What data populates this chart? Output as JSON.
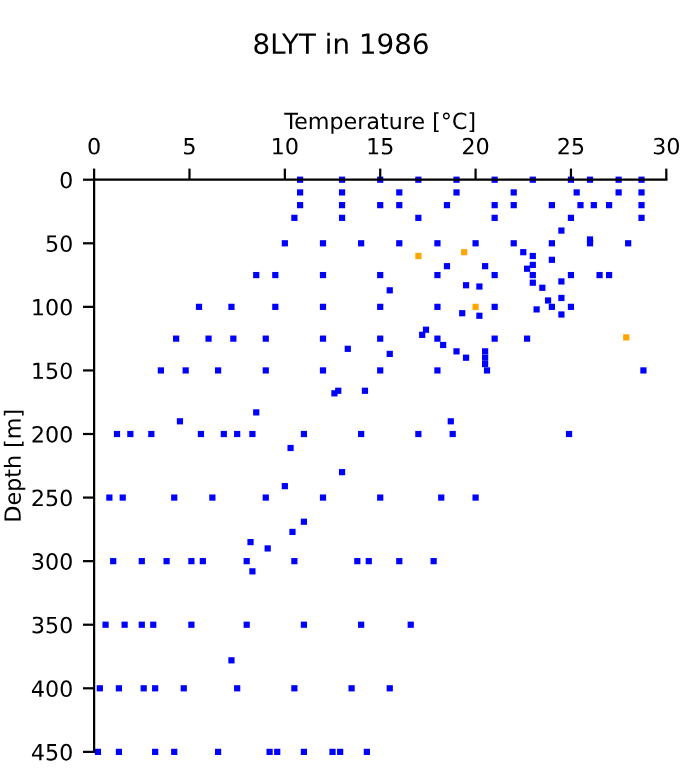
{
  "chart_data": {
    "type": "scatter",
    "title": "8LYT in 1986",
    "xlabel": "Temperature [°C]",
    "ylabel": "Depth [m]",
    "xlim": [
      0,
      30
    ],
    "xticks": [
      0,
      5,
      10,
      15,
      20,
      25,
      30
    ],
    "ylim": [
      450,
      0
    ],
    "yticks": [
      0,
      50,
      100,
      150,
      200,
      250,
      300,
      350,
      400,
      450
    ],
    "grid": false,
    "marker": "square",
    "series": [
      {
        "color": "#0000ff",
        "x": [
          10.8,
          13,
          15,
          17,
          19,
          21,
          23,
          25,
          26,
          27.5,
          28.7,
          10.8,
          13,
          16,
          19,
          22,
          25.3,
          27.5,
          28.7,
          10.8,
          13,
          15,
          16,
          18.5,
          21,
          22,
          24,
          25.5,
          26.2,
          27,
          28.7,
          10.5,
          13,
          17,
          21,
          25,
          28.7,
          24.5,
          26,
          10,
          12,
          14,
          16,
          18,
          20,
          22,
          24,
          26,
          28,
          22.5,
          23,
          24,
          18.5,
          20.5,
          23,
          22.7,
          8.5,
          9.5,
          12,
          15,
          18,
          21,
          23,
          25,
          26.5,
          27,
          19.5,
          15.5,
          20.2,
          23,
          23.5,
          23.8,
          24.5,
          24.5,
          5.5,
          7.2,
          9.5,
          12,
          15,
          18,
          21,
          24,
          25,
          19.3,
          20.2,
          23.2,
          24.5,
          17.4,
          17.2,
          4.3,
          6,
          7.3,
          9,
          12,
          15,
          18,
          21,
          22.7,
          13.3,
          15.5,
          19,
          20.5,
          20.5,
          18.3,
          19.5,
          20.5,
          3.5,
          4.8,
          6.5,
          9,
          12,
          15,
          18,
          20.6,
          28.8,
          12.6,
          12.8,
          14.2,
          8.5,
          4.5,
          18.7,
          1.2,
          1.9,
          3,
          5.6,
          6.8,
          7.5,
          8.3,
          11,
          14,
          17,
          18.8,
          24.9,
          10.3,
          13,
          10,
          0.8,
          1.5,
          4.2,
          6.2,
          9,
          12,
          15,
          18.2,
          20,
          11,
          10.4,
          8.2,
          9.1,
          8.3,
          1,
          2.5,
          3.8,
          5.1,
          5.7,
          8,
          10.5,
          13.8,
          14.4,
          16,
          17.8,
          0.6,
          1.6,
          2.5,
          3.1,
          5.1,
          8,
          11,
          14,
          16.6,
          7.2,
          0.3,
          1.3,
          2.6,
          3.2,
          4.7,
          7.5,
          10.5,
          13.5,
          15.5,
          0.2,
          1.3,
          3.2,
          4.2,
          6.5,
          9.2,
          9.6,
          11,
          12.5,
          12.9,
          14.3
        ],
        "values": [
          0,
          0,
          0,
          0,
          0,
          0,
          0,
          0,
          0,
          0,
          0,
          10,
          10,
          10,
          10,
          10,
          10,
          10,
          10,
          20,
          20,
          20,
          20,
          20,
          20,
          20,
          20,
          20,
          20,
          20,
          20,
          30,
          30,
          30,
          30,
          30,
          30,
          40,
          47,
          50,
          50,
          50,
          50,
          50,
          50,
          50,
          50,
          50,
          50,
          57,
          60,
          63,
          68,
          68,
          67,
          70,
          75,
          75,
          75,
          75,
          75,
          75,
          75,
          75,
          75,
          75,
          83,
          87,
          84,
          81,
          85,
          95,
          80,
          93,
          100,
          100,
          100,
          100,
          100,
          100,
          100,
          100,
          100,
          105,
          107,
          102,
          106,
          118,
          122,
          125,
          125,
          125,
          125,
          125,
          125,
          125,
          125,
          125,
          133,
          137,
          135,
          135,
          140,
          130,
          140,
          145,
          150,
          150,
          150,
          150,
          150,
          150,
          150,
          150,
          150,
          168,
          166,
          166,
          183,
          190,
          190,
          200,
          200,
          200,
          200,
          200,
          200,
          200,
          200,
          200,
          200,
          200,
          200,
          211,
          230,
          241,
          250,
          250,
          250,
          250,
          250,
          250,
          250,
          250,
          250,
          269,
          277,
          285,
          290,
          308,
          300,
          300,
          300,
          300,
          300,
          300,
          300,
          300,
          300,
          300,
          300,
          350,
          350,
          350,
          350,
          350,
          350,
          350,
          350,
          350,
          378,
          400,
          400,
          400,
          400,
          400,
          400,
          400,
          400,
          400,
          450,
          450,
          450,
          450,
          450,
          450,
          450,
          450,
          450,
          450,
          450
        ]
      },
      {
        "color": "#ffa500",
        "x": [
          17,
          19.4,
          20,
          27.9
        ],
        "values": [
          60,
          57,
          100,
          124
        ]
      }
    ]
  }
}
